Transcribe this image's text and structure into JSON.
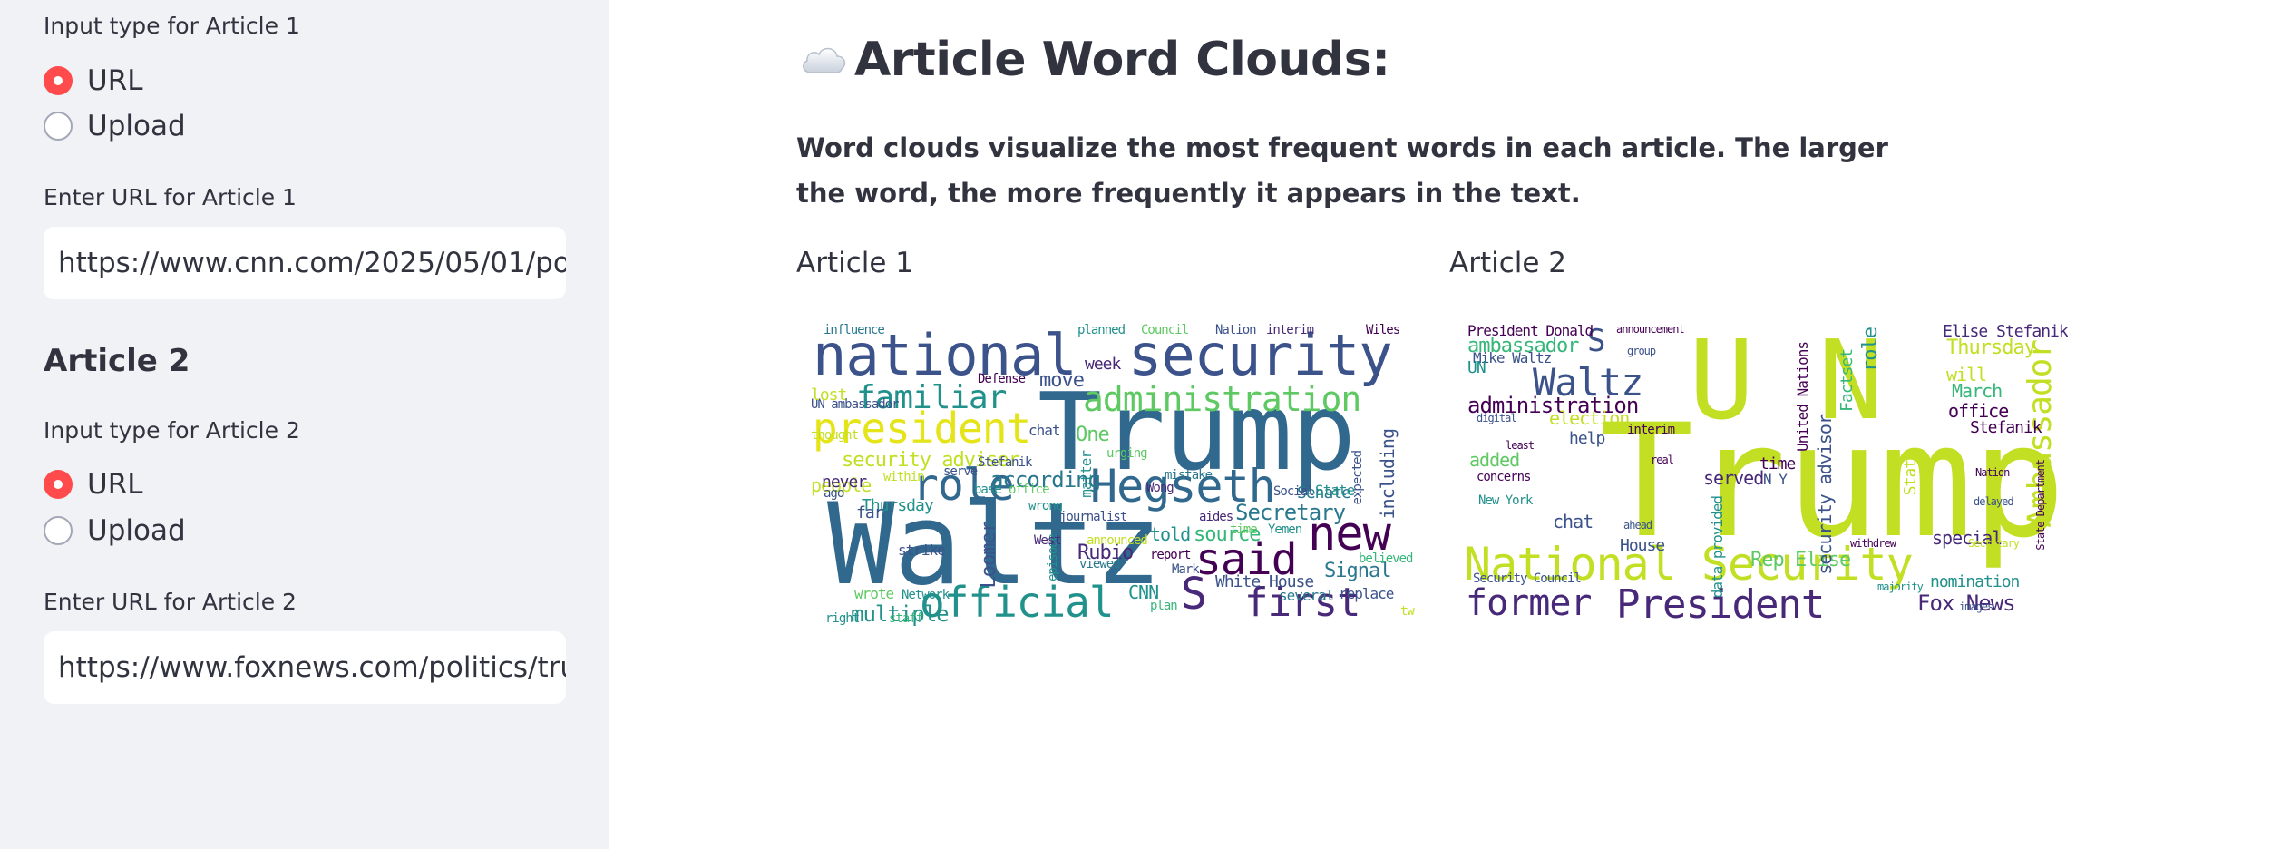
{
  "sidebar": {
    "article1": {
      "input_type_label": "Input type for Article 1",
      "options": [
        "URL",
        "Upload"
      ],
      "selected": "URL",
      "url_label": "Enter URL for Article 1",
      "url_value": "https://www.cnn.com/2025/05/01/politics/waltz-national-security-adviser"
    },
    "article2": {
      "heading": "Article 2",
      "input_type_label": "Input type for Article 2",
      "options": [
        "URL",
        "Upload"
      ],
      "selected": "URL",
      "url_label": "Enter URL for Article 2",
      "url_value": "https://www.foxnews.com/politics/trump-waltz-un-ambassador"
    }
  },
  "main": {
    "title_icon": "cloud-icon",
    "title": "Article Word Clouds:",
    "description": "Word clouds visualize the most frequent words in each article. The larger the word, the more frequently it appears in the text.",
    "article1_label": "Article 1",
    "article2_label": "Article 2"
  },
  "wordcloud1": {
    "words": [
      "national",
      "security",
      "Trump",
      "Waltz",
      "president",
      "administration",
      "familiar",
      "role",
      "Hegseth",
      "official",
      "first",
      "said",
      "new",
      "S",
      "security adviser",
      "according",
      "Secretary",
      "source",
      "Rubio",
      "Signal",
      "Loomer",
      "White House",
      "people",
      "multiple",
      "UN ambassador",
      "told",
      "including",
      "Thursday",
      "Senate",
      "One",
      "chat",
      "week",
      "move",
      "never",
      "lost",
      "influence",
      "planned",
      "Council",
      "Nation",
      "interim",
      "Wiles",
      "Defense",
      "Stefanik",
      "wrong",
      "journalist",
      "aides",
      "several",
      "replace",
      "believed",
      "viewed",
      "announced",
      "CNN",
      "plan",
      "report",
      "Wong",
      "thought",
      "ago",
      "strike",
      "wrote",
      "staff",
      "right",
      "Network",
      "State",
      "expected",
      "mistake",
      "matter",
      "urging",
      "serve",
      "within",
      "far",
      "base",
      "office",
      "episode",
      "West",
      "Mark",
      "two",
      "Yemen",
      "time",
      "Social"
    ],
    "palette": [
      "#440154",
      "#3b528b",
      "#21918c",
      "#5ec962",
      "#fde725",
      "#31688e",
      "#35b779",
      "#482878"
    ]
  },
  "wordcloud2": {
    "words": [
      "Trump",
      "U N",
      "National Security",
      "President",
      "former",
      "Waltz",
      "administration",
      "ambassador",
      "Ambassador",
      "S",
      "Fox News",
      "Rep Elise",
      "Elise Stefanik",
      "Thursday",
      "March",
      "office",
      "will",
      "special",
      "nomination",
      "President Donald",
      "Mike Waltz",
      "UN",
      "election",
      "help",
      "served",
      "added",
      "chat",
      "House",
      "security advisor",
      "United Nations",
      "Factset",
      "role",
      "Stefanik",
      "time",
      "N Y",
      "data provided",
      "State",
      "Security Council",
      "New York",
      "State Department",
      "interim",
      "announcement",
      "delayed",
      "majority",
      "Nation",
      "concerns",
      "group",
      "digital",
      "least",
      "real",
      "ahead",
      "withdrew",
      "images",
      "Secretary"
    ],
    "palette": [
      "#440154",
      "#3b528b",
      "#21918c",
      "#5ec962",
      "#c2df23",
      "#bddf26",
      "#31688e",
      "#482878"
    ]
  }
}
